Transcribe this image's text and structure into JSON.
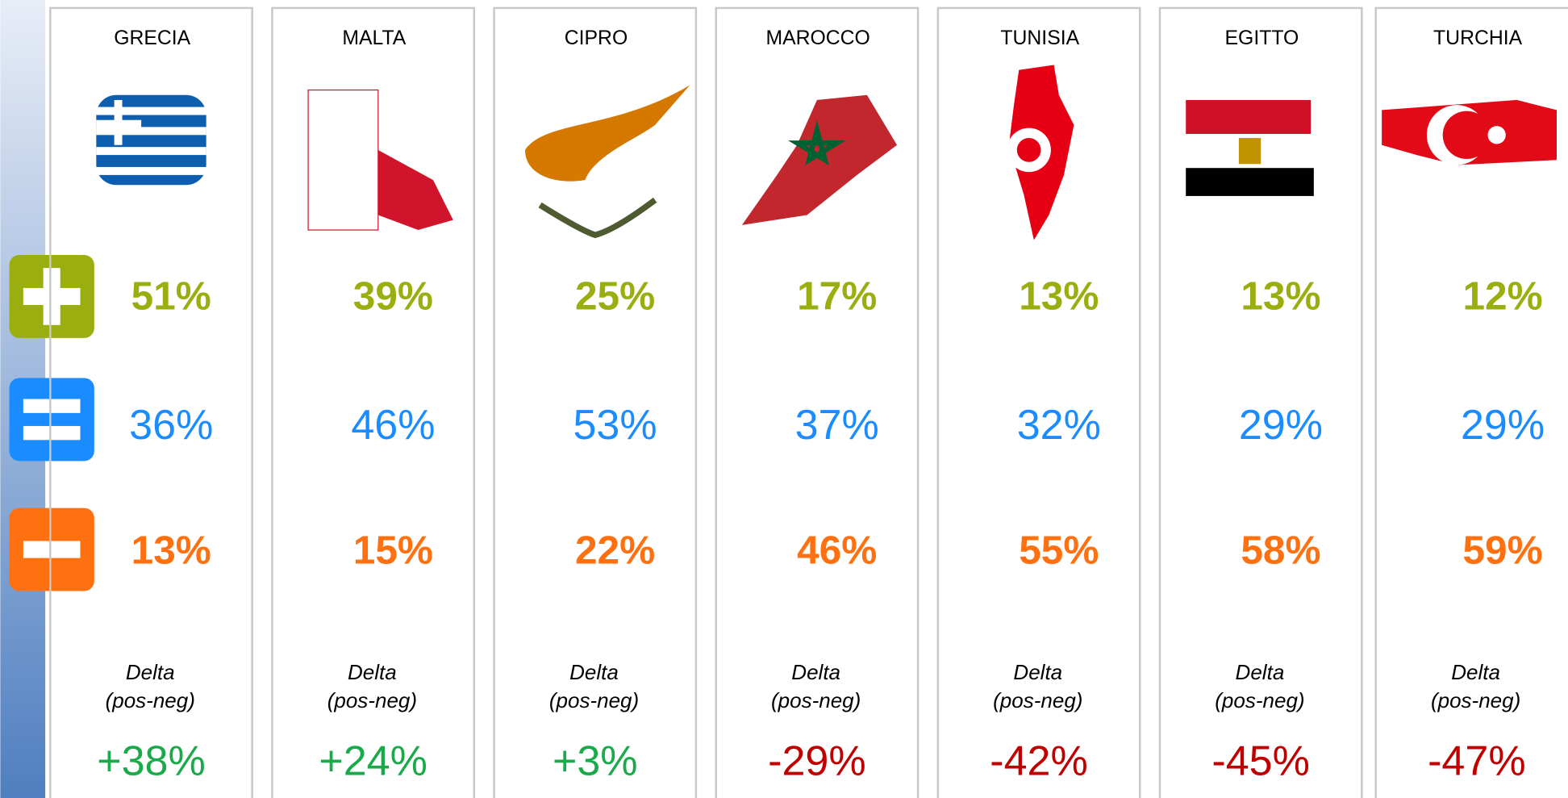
{
  "columns": [
    {
      "name": "GRECIA",
      "pos": "51%",
      "eq": "36%",
      "neg": "13%",
      "delta_label": "Delta",
      "delta_sub": "(pos-neg)",
      "delta": "+38%"
    },
    {
      "name": "MALTA",
      "pos": "39%",
      "eq": "46%",
      "neg": "15%",
      "delta_label": "Delta",
      "delta_sub": "(pos-neg)",
      "delta": "+24%"
    },
    {
      "name": "CIPRO",
      "pos": "25%",
      "eq": "53%",
      "neg": "22%",
      "delta_label": "Delta",
      "delta_sub": "(pos-neg)",
      "delta": "+3%"
    },
    {
      "name": "MAROCCO",
      "pos": "17%",
      "eq": "37%",
      "neg": "46%",
      "delta_label": "Delta",
      "delta_sub": "(pos-neg)",
      "delta": "-29%"
    },
    {
      "name": "TUNISIA",
      "pos": "13%",
      "eq": "32%",
      "neg": "55%",
      "delta_label": "Delta",
      "delta_sub": "(pos-neg)",
      "delta": "-42%"
    },
    {
      "name": "EGITTO",
      "pos": "13%",
      "eq": "29%",
      "neg": "58%",
      "delta_label": "Delta",
      "delta_sub": "(pos-neg)",
      "delta": "-45%"
    },
    {
      "name": "TURCHIA",
      "pos": "12%",
      "eq": "29%",
      "neg": "59%",
      "delta_label": "Delta",
      "delta_sub": "(pos-neg)",
      "delta": "-47%"
    }
  ]
}
